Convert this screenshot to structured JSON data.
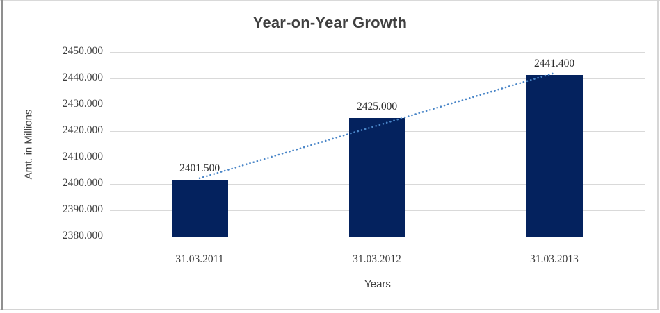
{
  "chart_data": {
    "type": "bar",
    "title": "Year-on-Year Growth",
    "xlabel": "Years",
    "ylabel": "Amt. in Millions",
    "categories": [
      "31.03.2011",
      "31.03.2012",
      "31.03.2013"
    ],
    "values": [
      2401.5,
      2425.0,
      2441.4
    ],
    "data_labels": [
      "2401.500",
      "2425.000",
      "2441.400"
    ],
    "ylim": [
      2380,
      2450
    ],
    "ytick_step": 10,
    "ytick_labels": [
      "2380.000",
      "2390.000",
      "2400.000",
      "2410.000",
      "2420.000",
      "2430.000",
      "2440.000",
      "2450.000"
    ],
    "grid": true,
    "legend": "none",
    "bar_color": "#04225e",
    "gridline_color": "#d9d9d9",
    "axis_text_color": "#404040",
    "trendline": {
      "type": "linear",
      "style": "dotted",
      "color": "#4a86c8",
      "from_value": 2401.5,
      "to_value": 2441.4
    }
  }
}
